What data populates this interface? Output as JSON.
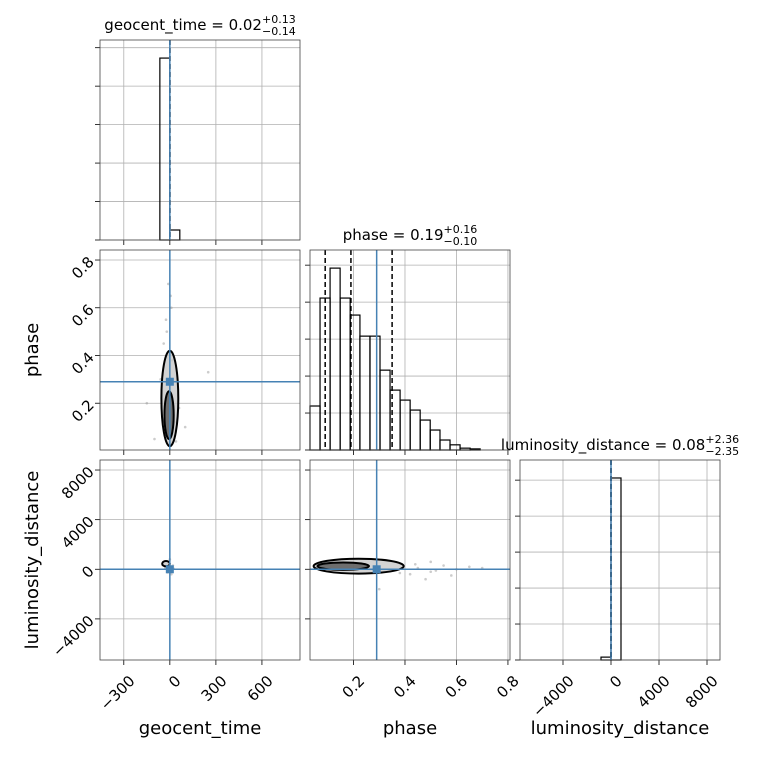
{
  "chart_data": [
    {
      "type": "histogram",
      "title": "geocent_time = 0.02",
      "title_plus": "+0.13",
      "title_minus": "−0.14",
      "bins": [
        -65,
        0,
        65
      ],
      "values": [
        4.73,
        0.26
      ],
      "color": "#000000",
      "xlim": [
        -455,
        848
      ],
      "xticks": [
        {
          "value": -300,
          "label": "−300"
        },
        0,
        300,
        600
      ],
      "ylim": [
        0,
        5.2
      ],
      "yticks": [
        0,
        1,
        2,
        3,
        4,
        5
      ],
      "quantiles": [
        -0.12,
        0.02,
        0.15
      ],
      "truth": 0,
      "truth_color": "#4682b4",
      "grid": true
    },
    {
      "type": "scatter",
      "ylabel": "phase",
      "xlim": [
        -455,
        848
      ],
      "xticks": [
        {
          "value": -300,
          "label": "−300"
        },
        0,
        300,
        600
      ],
      "ylim": [
        0.004,
        0.842
      ],
      "yticks": [
        0.2,
        0.4,
        0.6,
        0.8
      ],
      "x": [
        -20,
        10,
        5,
        -40,
        60,
        -100,
        250,
        -25,
        15,
        -60,
        30,
        -10,
        100,
        -150,
        40
      ],
      "y": [
        0.5,
        0.6,
        0.65,
        0.45,
        0.18,
        0.05,
        0.33,
        0.55,
        0.38,
        0.3,
        0.12,
        0.7,
        0.1,
        0.2,
        0.04
      ],
      "contours": [
        {
          "cx": 0,
          "cy": 0.22,
          "rx": 55,
          "ry": 0.2
        },
        {
          "cx": -5,
          "cy": 0.15,
          "rx": 30,
          "ry": 0.1
        }
      ],
      "truth_x": 0,
      "truth_y": 0.29,
      "truth_color": "#4682b4",
      "grid": true
    },
    {
      "type": "histogram",
      "title": "phase = 0.19",
      "title_plus": "+0.16",
      "title_minus": "−0.10",
      "bins": [
        0.031,
        0.07,
        0.109,
        0.148,
        0.187,
        0.225,
        0.264,
        0.303,
        0.342,
        0.381,
        0.42,
        0.459,
        0.498,
        0.536,
        0.575,
        0.614,
        0.653,
        0.692,
        0.731,
        0.77,
        0.808
      ],
      "values": [
        1.19,
        4.11,
        4.92,
        4.11,
        3.65,
        3.08,
        3.08,
        2.16,
        1.62,
        1.35,
        1.08,
        0.81,
        0.54,
        0.27,
        0.14,
        0.05,
        0.03,
        0,
        0,
        0
      ],
      "color": "#000000",
      "xlim": [
        0.031,
        0.808
      ],
      "xticks": [
        0.2,
        0.4,
        0.6,
        0.8
      ],
      "ylim": [
        0,
        5.41
      ],
      "yticks": [
        0,
        1,
        2,
        3,
        4,
        5
      ],
      "quantiles": [
        0.09,
        0.19,
        0.35
      ],
      "truth": 0.29,
      "truth_color": "#4682b4",
      "grid": true
    },
    {
      "type": "scatter",
      "xlabel": "geocent_time",
      "ylabel": "luminosity_distance",
      "xlim": [
        -455,
        848
      ],
      "xticks": [
        {
          "value": -300,
          "label": "−300"
        },
        0,
        300,
        600
      ],
      "ylim": [
        -7313,
        8808
      ],
      "yticks": [
        {
          "value": -4000,
          "label": "−4000"
        },
        0,
        4000,
        8000
      ],
      "x": [
        -10,
        5,
        20,
        -30,
        10,
        0,
        -15,
        25
      ],
      "y": [
        200,
        -100,
        300,
        100,
        -400,
        800,
        -250,
        50
      ],
      "contours": [
        {
          "cx": -25,
          "cy": 450,
          "rx": 25,
          "ry": 220
        }
      ],
      "truth_x": 0,
      "truth_y": 0,
      "truth_color": "#4682b4",
      "grid": true
    },
    {
      "type": "scatter",
      "xlabel": "phase",
      "xlim": [
        0.031,
        0.808
      ],
      "xticks": [
        0.2,
        0.4,
        0.6,
        0.8
      ],
      "ylim": [
        -7313,
        8808
      ],
      "yticks": [
        {
          "value": -4000,
          "label": "−4000"
        },
        0,
        4000,
        8000
      ],
      "x": [
        0.45,
        0.5,
        0.55,
        0.6,
        0.42,
        0.65,
        0.5,
        0.38,
        0.7,
        0.48,
        0.3,
        0.58,
        0.44,
        0.52
      ],
      "y": [
        100,
        -200,
        300,
        0,
        -400,
        200,
        600,
        -300,
        100,
        -800,
        -1600,
        -500,
        400,
        -100
      ],
      "contours": [
        {
          "cx": 0.22,
          "cy": 250,
          "rx": 0.175,
          "ry": 600
        },
        {
          "cx": 0.16,
          "cy": 250,
          "rx": 0.1,
          "ry": 300
        }
      ],
      "truth_x": 0.29,
      "truth_y": 0,
      "truth_color": "#4682b4",
      "grid": true
    },
    {
      "type": "histogram",
      "title": "luminosity_distance = 0.08",
      "title_plus": "+2.36",
      "title_minus": "−2.35",
      "xlabel": "luminosity_distance",
      "bins": [
        -833,
        0,
        833
      ],
      "values": [
        0.08,
        5.06
      ],
      "color": "#000000",
      "xlim": [
        -7583,
        9083
      ],
      "xticks": [
        {
          "value": -4000,
          "label": "−4000"
        },
        0,
        4000,
        8000
      ],
      "ylim": [
        0,
        5.56
      ],
      "yticks": [
        0,
        1,
        2,
        3,
        4,
        5
      ],
      "quantiles": [
        -2.27,
        0.08,
        2.44
      ],
      "truth": 0,
      "truth_color": "#4682b4",
      "grid": true
    }
  ]
}
